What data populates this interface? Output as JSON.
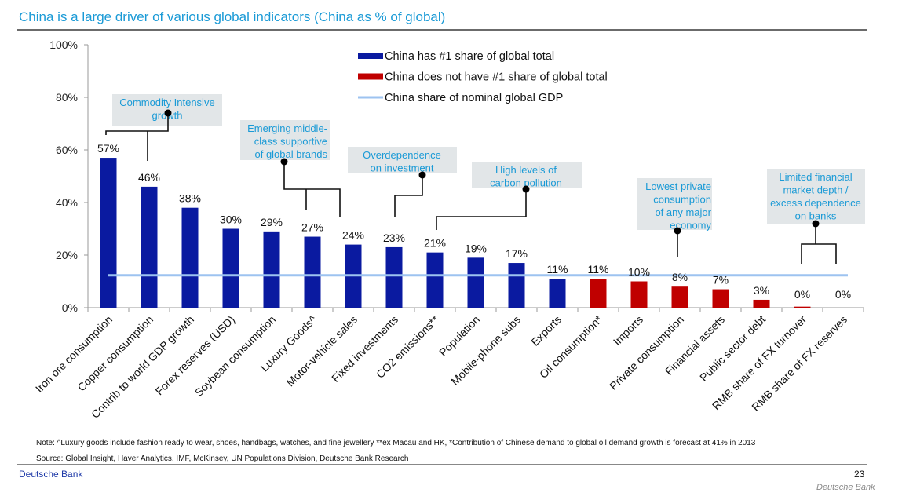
{
  "page": {
    "title": "China is a large driver of various global indicators (China as % of global)",
    "note": "Note: ^Luxury goods include fashion ready to wear, shoes, handbags, watches, and fine jewellery **ex Macau and HK, *Contribution of Chinese demand to global oil demand growth is forecast at 41% in 2013",
    "source": "Source: Global Insight, Haver Analytics, IMF, McKinsey, UN Populations Division, Deutsche Bank Research",
    "brand": "Deutsche Bank",
    "page_number": "23",
    "watermark": "Deutsche Bank"
  },
  "colors": {
    "title": "#1a9ad6",
    "first_share": "#0a1aa0",
    "not_first_share": "#c00000",
    "gdp_line": "#9dc3f0",
    "annotation_box": "#e2e6e8",
    "annotation_text": "#1a9ad6"
  },
  "chart_data": {
    "type": "bar",
    "title": "China is a large driver of various global indicators (China as % of global)",
    "xlabel": "",
    "ylabel": "",
    "ylim": [
      0,
      100
    ],
    "yticks": [
      "0%",
      "20%",
      "40%",
      "60%",
      "80%",
      "100%"
    ],
    "ytick_values": [
      0,
      20,
      40,
      60,
      80,
      100
    ],
    "grid": false,
    "legend_position": "top-center",
    "categories": [
      "Iron ore consumption",
      "Copper consumption",
      "Contrib to world GDP growth",
      "Forex reserves (USD)",
      "Soybean consumption",
      "Luxury Goods^",
      "Motor-vehicle sales",
      "Fixed investments",
      "CO2 emissions**",
      "Population",
      "Mobile-phone subs",
      "Exports",
      "Oil consumption*",
      "Imports",
      "Private consumption",
      "Financial assets",
      "Public sector debt",
      "RMB share of FX turnover",
      "RMB share of FX reserves"
    ],
    "values": [
      57,
      46,
      38,
      30,
      29,
      27,
      24,
      23,
      21,
      19,
      17,
      11,
      11,
      10,
      8,
      7,
      3,
      0.4,
      0
    ],
    "value_labels": [
      "57%",
      "46%",
      "38%",
      "30%",
      "29%",
      "27%",
      "24%",
      "23%",
      "21%",
      "19%",
      "17%",
      "11%",
      "11%",
      "10%",
      "8%",
      "7%",
      "3%",
      "0%",
      "0%"
    ],
    "series_membership": [
      "first",
      "first",
      "first",
      "first",
      "first",
      "first",
      "first",
      "first",
      "first",
      "first",
      "first",
      "first",
      "not_first",
      "not_first",
      "not_first",
      "not_first",
      "not_first",
      "not_first",
      "not_first"
    ],
    "legend": [
      {
        "key": "first",
        "label": "China has #1 share of global total",
        "kind": "bar"
      },
      {
        "key": "not_first",
        "label": "China does not have #1 share of global total",
        "kind": "bar"
      },
      {
        "key": "gdp",
        "label": "China share of nominal global GDP",
        "kind": "line"
      }
    ],
    "reference_line": {
      "name": "China share of nominal global GDP",
      "value": 12.3
    },
    "annotations": [
      {
        "lines": [
          "Commodity Intensive",
          "growth"
        ],
        "categories": [
          0,
          1
        ]
      },
      {
        "lines": [
          "Emerging middle-",
          "class supportive",
          "of global brands"
        ],
        "categories": [
          5,
          6
        ]
      },
      {
        "lines": [
          "Overdependence",
          "on investment"
        ],
        "categories": [
          7
        ]
      },
      {
        "lines": [
          "High levels of",
          "carbon pollution"
        ],
        "categories": [
          8
        ]
      },
      {
        "lines": [
          "Lowest private",
          "consumption",
          "of any major",
          "economy"
        ],
        "categories": [
          14
        ]
      },
      {
        "lines": [
          "Limited financial",
          "market depth /",
          "excess dependence",
          "on banks"
        ],
        "categories": [
          17,
          18
        ]
      }
    ]
  }
}
